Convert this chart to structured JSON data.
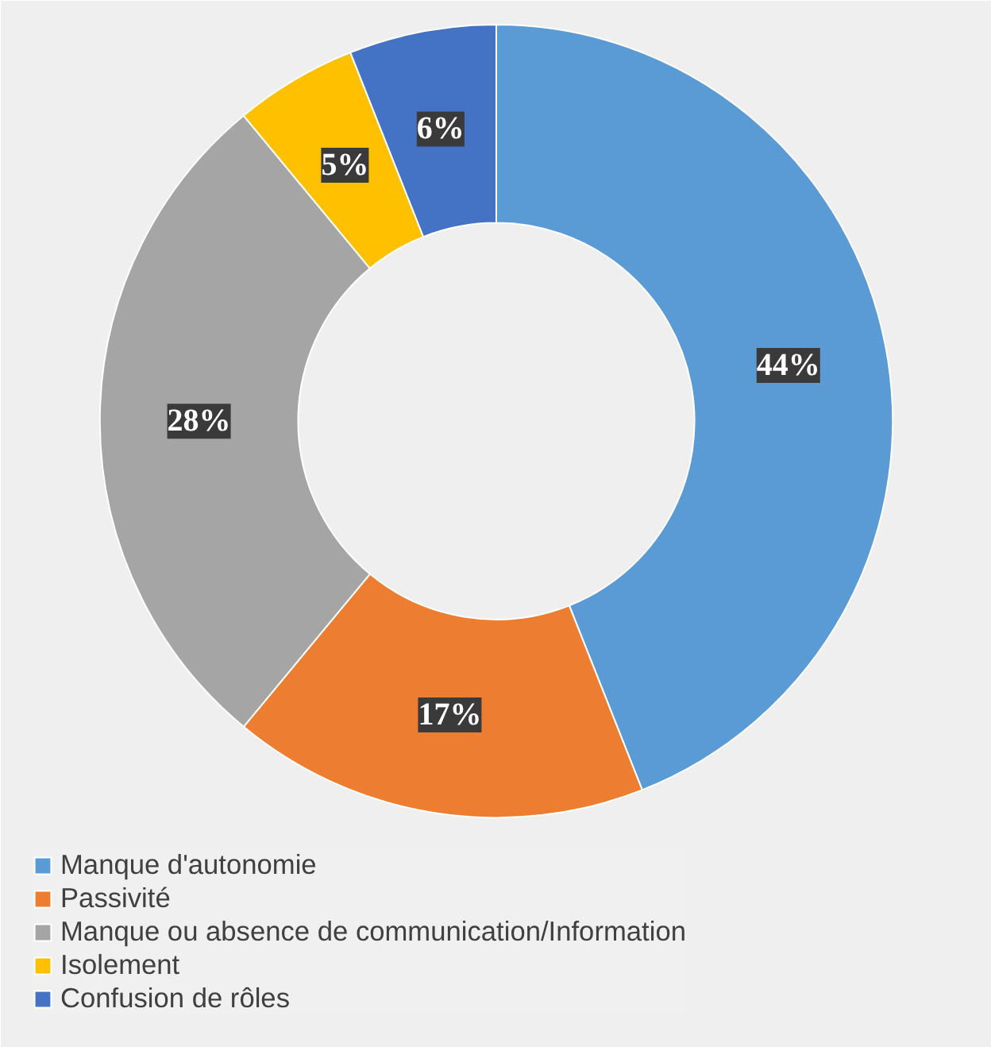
{
  "chart_data": {
    "type": "donut",
    "categories": [
      "Manque d'autonomie",
      "Passivité",
      "Manque ou absence de communication/Information",
      "Isolement",
      "Confusion de rôles"
    ],
    "values": [
      44,
      17,
      28,
      5,
      6
    ],
    "colors": [
      "#5b9bd5",
      "#ed7d31",
      "#a5a5a5",
      "#ffc000",
      "#4472c4"
    ],
    "value_labels": [
      "44%",
      "17%",
      "28%",
      "5%",
      "6%"
    ],
    "legend": "bottom"
  }
}
